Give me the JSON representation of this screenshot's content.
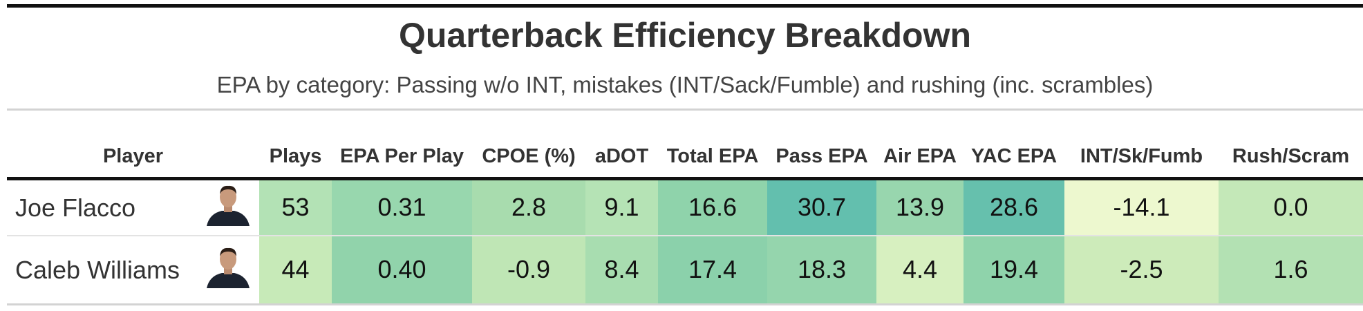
{
  "title": "Quarterback Efficiency Breakdown",
  "subtitle": "EPA by category: Passing w/o INT, mistakes (INT/Sack/Fumble) and rushing (inc. scrambles)",
  "table": {
    "headers": [
      "Player",
      "Plays",
      "EPA Per Play",
      "CPOE (%)",
      "aDOT",
      "Total EPA",
      "Pass EPA",
      "Air EPA",
      "YAC EPA",
      "INT/Sk/Fumb",
      "Rush/Scram"
    ],
    "rows": [
      {
        "player": "Joe Flacco",
        "cells": [
          "53",
          "0.31",
          "2.8",
          "9.1",
          "16.6",
          "30.7",
          "13.9",
          "28.6",
          "-14.1",
          "0.0"
        ],
        "colors": [
          "#b3e2b5",
          "#98d7ae",
          "#a8dcae",
          "#b5e3b5",
          "#8fd3ab",
          "#63bfae",
          "#98d6ae",
          "#66c0ad",
          "#edf8cf",
          "#c4e8b8"
        ]
      },
      {
        "player": "Caleb Williams",
        "cells": [
          "44",
          "0.40",
          "-0.9",
          "8.4",
          "17.4",
          "18.3",
          "4.4",
          "19.4",
          "-2.5",
          "1.6"
        ],
        "colors": [
          "#c7eab8",
          "#91d3ab",
          "#bfe6b5",
          "#a8ddb0",
          "#8bd1ab",
          "#95d5ad",
          "#d7f0c0",
          "#8fd3ab",
          "#cdebba",
          "#b3e1b3"
        ]
      }
    ]
  }
}
